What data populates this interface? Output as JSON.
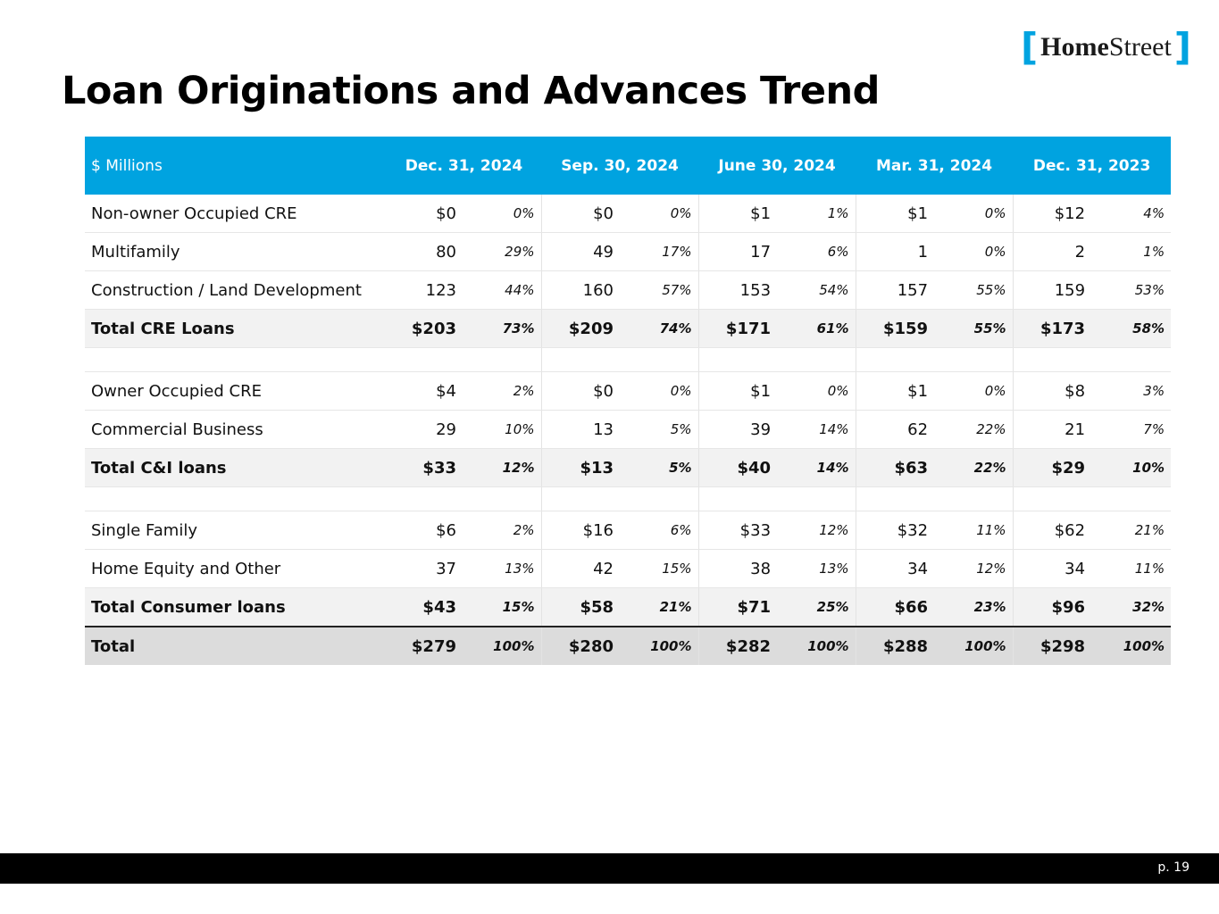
{
  "logo": {
    "open": "[",
    "bold": "Home",
    "regular": "Street",
    "close": "]"
  },
  "title": "Loan Originations and Advances Trend",
  "table": {
    "corner": "$ Millions",
    "periods": [
      "Dec. 31, 2024",
      "Sep. 30, 2024",
      "June 30, 2024",
      "Mar. 31, 2024",
      "Dec. 31, 2023"
    ],
    "sections": [
      {
        "rows": [
          {
            "label": "Non-owner Occupied CRE",
            "cells": [
              [
                "$0",
                "0%"
              ],
              [
                "$0",
                "0%"
              ],
              [
                "$1",
                "1%"
              ],
              [
                "$1",
                "0%"
              ],
              [
                "$12",
                "4%"
              ]
            ]
          },
          {
            "label": "Multifamily",
            "cells": [
              [
                "80",
                "29%"
              ],
              [
                "49",
                "17%"
              ],
              [
                "17",
                "6%"
              ],
              [
                "1",
                "0%"
              ],
              [
                "2",
                "1%"
              ]
            ]
          },
          {
            "label": "Construction / Land Development",
            "cells": [
              [
                "123",
                "44%"
              ],
              [
                "160",
                "57%"
              ],
              [
                "153",
                "54%"
              ],
              [
                "157",
                "55%"
              ],
              [
                "159",
                "53%"
              ]
            ]
          }
        ],
        "total": {
          "label": "Total CRE Loans",
          "cells": [
            [
              "$203",
              "73%"
            ],
            [
              "$209",
              "74%"
            ],
            [
              "$171",
              "61%"
            ],
            [
              "$159",
              "55%"
            ],
            [
              "$173",
              "58%"
            ]
          ]
        }
      },
      {
        "rows": [
          {
            "label": "Owner Occupied CRE",
            "cells": [
              [
                "$4",
                "2%"
              ],
              [
                "$0",
                "0%"
              ],
              [
                "$1",
                "0%"
              ],
              [
                "$1",
                "0%"
              ],
              [
                "$8",
                "3%"
              ]
            ]
          },
          {
            "label": "Commercial Business",
            "cells": [
              [
                "29",
                "10%"
              ],
              [
                "13",
                "5%"
              ],
              [
                "39",
                "14%"
              ],
              [
                "62",
                "22%"
              ],
              [
                "21",
                "7%"
              ]
            ]
          }
        ],
        "total": {
          "label": "Total C&I loans",
          "cells": [
            [
              "$33",
              "12%"
            ],
            [
              "$13",
              "5%"
            ],
            [
              "$40",
              "14%"
            ],
            [
              "$63",
              "22%"
            ],
            [
              "$29",
              "10%"
            ]
          ]
        }
      },
      {
        "rows": [
          {
            "label": "Single Family",
            "cells": [
              [
                "$6",
                "2%"
              ],
              [
                "$16",
                "6%"
              ],
              [
                "$33",
                "12%"
              ],
              [
                "$32",
                "11%"
              ],
              [
                "$62",
                "21%"
              ]
            ]
          },
          {
            "label": "Home Equity and Other",
            "cells": [
              [
                "37",
                "13%"
              ],
              [
                "42",
                "15%"
              ],
              [
                "38",
                "13%"
              ],
              [
                "34",
                "12%"
              ],
              [
                "34",
                "11%"
              ]
            ]
          }
        ],
        "total": {
          "label": "Total Consumer loans",
          "cells": [
            [
              "$43",
              "15%"
            ],
            [
              "$58",
              "21%"
            ],
            [
              "$71",
              "25%"
            ],
            [
              "$66",
              "23%"
            ],
            [
              "$96",
              "32%"
            ]
          ]
        }
      }
    ],
    "grand_total": {
      "label": "Total",
      "cells": [
        [
          "$279",
          "100%"
        ],
        [
          "$280",
          "100%"
        ],
        [
          "$282",
          "100%"
        ],
        [
          "$288",
          "100%"
        ],
        [
          "$298",
          "100%"
        ]
      ]
    }
  },
  "footer": {
    "page": "p. 19"
  }
}
